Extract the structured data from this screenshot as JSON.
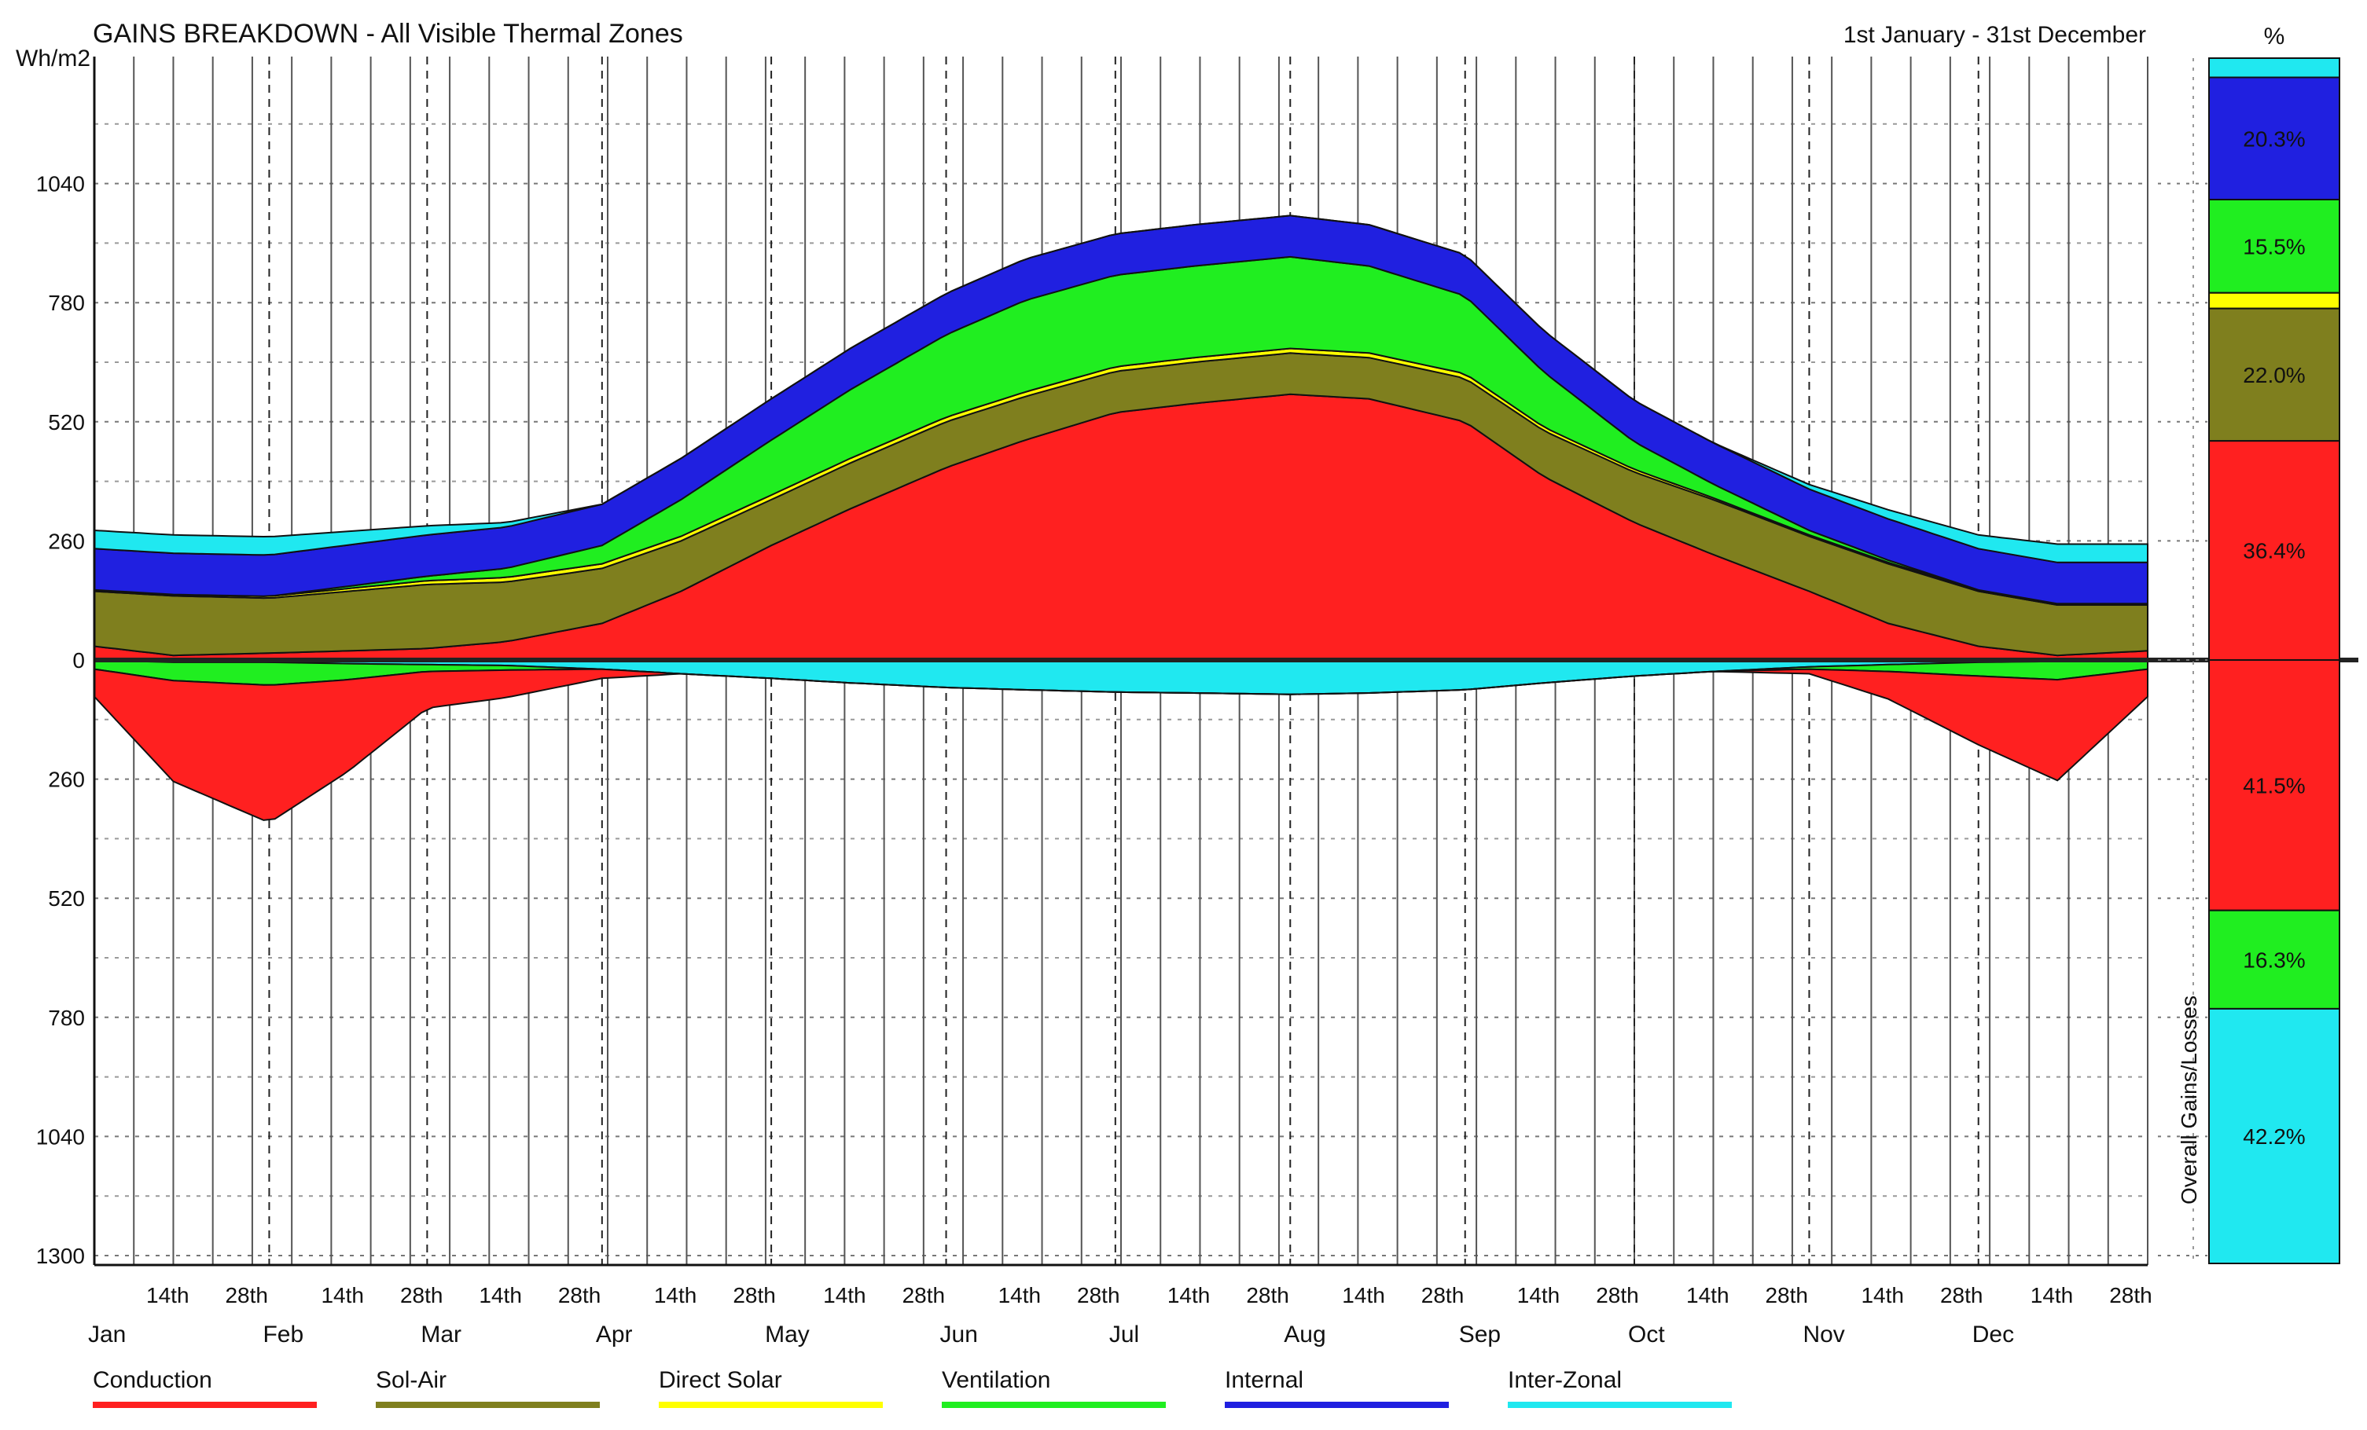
{
  "header": {
    "title": "GAINS BREAKDOWN - All Visible Thermal Zones",
    "date_range": "1st January - 31st December",
    "y_unit": "Wh/m2",
    "percent_label": "%"
  },
  "chart_data": {
    "type": "area",
    "title": "GAINS BREAKDOWN - All Visible Thermal Zones",
    "ylabel": "Wh/m2",
    "ylim": [
      -1300,
      1300
    ],
    "y_ticks": [
      "0",
      "260",
      "520",
      "780",
      "1040",
      "1300"
    ],
    "y_tick_values": [
      1040,
      780,
      520,
      260,
      0,
      -260,
      -520,
      -780,
      -1040,
      -1300
    ],
    "y_tick_labels": [
      "1040",
      "780",
      "520",
      "260",
      "0",
      "260",
      "520",
      "780",
      "1040",
      "1300"
    ],
    "x_range_days": [
      1,
      365
    ],
    "months": [
      "Jan",
      "Feb",
      "Mar",
      "Apr",
      "May",
      "Jun",
      "Jul",
      "Aug",
      "Sep",
      "Oct",
      "Nov",
      "Dec"
    ],
    "day_ticks": [
      "14th",
      "28th"
    ],
    "weekly_gridlines": true,
    "gains_series": [
      {
        "name": "Conduction",
        "color": "#ff2020",
        "x": [
          1,
          15,
          32,
          46,
          60,
          74,
          91,
          105,
          121,
          135,
          152,
          166,
          182,
          196,
          213,
          227,
          244,
          258,
          274,
          288,
          305,
          319,
          335,
          349,
          365
        ],
        "values": [
          30,
          10,
          15,
          20,
          25,
          40,
          80,
          150,
          250,
          330,
          420,
          480,
          540,
          560,
          580,
          570,
          520,
          400,
          300,
          230,
          150,
          80,
          30,
          10,
          20
        ]
      },
      {
        "name": "Sol-Air",
        "color": "#7f7f1e",
        "x": [
          1,
          15,
          32,
          46,
          60,
          74,
          91,
          105,
          121,
          135,
          152,
          166,
          182,
          196,
          213,
          227,
          244,
          258,
          274,
          288,
          305,
          319,
          335,
          349,
          365
        ],
        "values": [
          120,
          130,
          120,
          130,
          140,
          130,
          120,
          110,
          100,
          100,
          100,
          95,
          90,
          90,
          90,
          90,
          95,
          100,
          110,
          120,
          120,
          130,
          120,
          110,
          100
        ]
      },
      {
        "name": "Direct Solar",
        "color": "#ffff00",
        "x": [
          1,
          15,
          32,
          46,
          60,
          74,
          91,
          105,
          121,
          135,
          152,
          166,
          182,
          196,
          213,
          227,
          244,
          258,
          274,
          288,
          305,
          319,
          335,
          349,
          365
        ],
        "values": [
          3,
          3,
          4,
          6,
          8,
          10,
          10,
          10,
          10,
          10,
          10,
          10,
          10,
          10,
          10,
          10,
          10,
          8,
          6,
          4,
          3,
          3,
          3,
          3,
          3
        ]
      },
      {
        "name": "Ventilation",
        "color": "#20ee20",
        "x": [
          1,
          15,
          32,
          46,
          60,
          74,
          91,
          105,
          121,
          135,
          152,
          166,
          182,
          196,
          213,
          227,
          244,
          258,
          274,
          288,
          305,
          319,
          335,
          349,
          365
        ],
        "values": [
          0,
          0,
          0,
          5,
          10,
          20,
          40,
          80,
          120,
          150,
          180,
          200,
          200,
          200,
          200,
          190,
          170,
          120,
          60,
          30,
          10,
          5,
          0,
          0,
          0
        ]
      },
      {
        "name": "Internal",
        "color": "#2020e0",
        "x": [
          1,
          15,
          32,
          46,
          60,
          74,
          91,
          105,
          121,
          135,
          152,
          166,
          182,
          196,
          213,
          227,
          244,
          258,
          274,
          288,
          305,
          319,
          335,
          349,
          365
        ],
        "values": [
          90,
          90,
          90,
          90,
          90,
          90,
          90,
          90,
          90,
          90,
          90,
          90,
          90,
          90,
          90,
          90,
          90,
          90,
          90,
          90,
          90,
          90,
          90,
          90,
          90
        ]
      },
      {
        "name": "Inter-Zonal",
        "color": "#20e8f0",
        "x": [
          1,
          15,
          32,
          46,
          60,
          74,
          91,
          105,
          121,
          135,
          152,
          166,
          182,
          196,
          213,
          227,
          244,
          258,
          274,
          288,
          305,
          319,
          335,
          349,
          365
        ],
        "values": [
          40,
          40,
          40,
          30,
          20,
          10,
          0,
          0,
          0,
          0,
          0,
          0,
          0,
          0,
          0,
          0,
          0,
          0,
          0,
          0,
          10,
          20,
          30,
          40,
          40
        ]
      }
    ],
    "losses_series": [
      {
        "name": "Inter-Zonal",
        "color": "#20e8f0",
        "x": [
          1,
          15,
          32,
          46,
          60,
          74,
          91,
          105,
          121,
          135,
          152,
          166,
          182,
          196,
          213,
          227,
          244,
          258,
          274,
          288,
          305,
          319,
          335,
          349,
          365
        ],
        "values": [
          0,
          5,
          5,
          8,
          10,
          12,
          20,
          30,
          40,
          50,
          60,
          65,
          70,
          72,
          75,
          72,
          65,
          50,
          35,
          25,
          15,
          10,
          5,
          3,
          0
        ]
      },
      {
        "name": "Ventilation",
        "color": "#20ee20",
        "x": [
          1,
          15,
          32,
          46,
          60,
          74,
          91,
          105,
          121,
          135,
          152,
          166,
          182,
          196,
          213,
          227,
          244,
          258,
          274,
          288,
          305,
          319,
          335,
          349,
          365
        ],
        "values": [
          20,
          40,
          50,
          35,
          15,
          10,
          0,
          0,
          0,
          0,
          0,
          0,
          0,
          0,
          0,
          0,
          0,
          0,
          0,
          0,
          5,
          15,
          30,
          40,
          20
        ]
      },
      {
        "name": "Conduction",
        "color": "#ff2020",
        "x": [
          1,
          15,
          32,
          46,
          60,
          74,
          91,
          105,
          121,
          135,
          152,
          166,
          182,
          196,
          213,
          227,
          244,
          258,
          274,
          288,
          305,
          319,
          335,
          349,
          365
        ],
        "values": [
          60,
          220,
          300,
          200,
          80,
          60,
          20,
          0,
          0,
          0,
          0,
          0,
          0,
          0,
          0,
          0,
          0,
          0,
          0,
          0,
          10,
          60,
          150,
          220,
          60
        ]
      }
    ],
    "summary_bar": {
      "label": "Overall  Gains/Losses",
      "gains": [
        {
          "name": "Inter-Zonal",
          "color": "#20e8f0",
          "percent": 3.2,
          "label": ""
        },
        {
          "name": "Internal",
          "color": "#2020e0",
          "percent": 20.3,
          "label": "20.3%"
        },
        {
          "name": "Ventilation",
          "color": "#20ee20",
          "percent": 15.5,
          "label": "15.5%"
        },
        {
          "name": "Direct Solar",
          "color": "#ffff00",
          "percent": 2.6,
          "label": ""
        },
        {
          "name": "Sol-Air",
          "color": "#7f7f1e",
          "percent": 22.0,
          "label": "22.0%"
        },
        {
          "name": "Conduction",
          "color": "#ff2020",
          "percent": 36.4,
          "label": "36.4%"
        }
      ],
      "losses": [
        {
          "name": "Conduction",
          "color": "#ff2020",
          "percent": 41.5,
          "label": "41.5%"
        },
        {
          "name": "Ventilation",
          "color": "#20ee20",
          "percent": 16.3,
          "label": "16.3%"
        },
        {
          "name": "Inter-Zonal",
          "color": "#20e8f0",
          "percent": 42.2,
          "label": "42.2%"
        }
      ]
    },
    "legend": {
      "placement": "bottom",
      "items": [
        {
          "name": "Conduction",
          "color": "#ff2020"
        },
        {
          "name": "Sol-Air",
          "color": "#7f7f1e"
        },
        {
          "name": "Direct Solar",
          "color": "#ffff00"
        },
        {
          "name": "Ventilation",
          "color": "#20ee20"
        },
        {
          "name": "Internal",
          "color": "#2020e0"
        },
        {
          "name": "Inter-Zonal",
          "color": "#20e8f0"
        }
      ]
    }
  }
}
